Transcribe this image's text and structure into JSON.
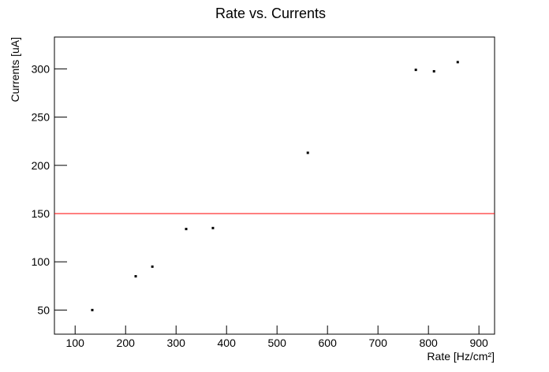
{
  "chart_data": {
    "type": "scatter",
    "title": "Rate vs. Currents",
    "x_label": "Rate [Hz/cm²]",
    "y_label": "Currents [uA]",
    "series": [
      {
        "name": "data",
        "color": "#000000",
        "x": [
          134,
          220,
          253,
          320,
          373,
          561,
          775,
          811,
          858
        ],
        "values": [
          50,
          85,
          95,
          134,
          135,
          213,
          299,
          297.5,
          307
        ]
      }
    ],
    "xlim": [
      59,
      931
    ],
    "ylim": [
      25,
      333
    ],
    "xticks": [
      100,
      200,
      300,
      400,
      500,
      600,
      700,
      800,
      900
    ],
    "yticks": [
      50,
      100,
      150,
      200,
      250,
      300
    ],
    "hline": {
      "value": 150,
      "color": "#ff0000"
    }
  }
}
